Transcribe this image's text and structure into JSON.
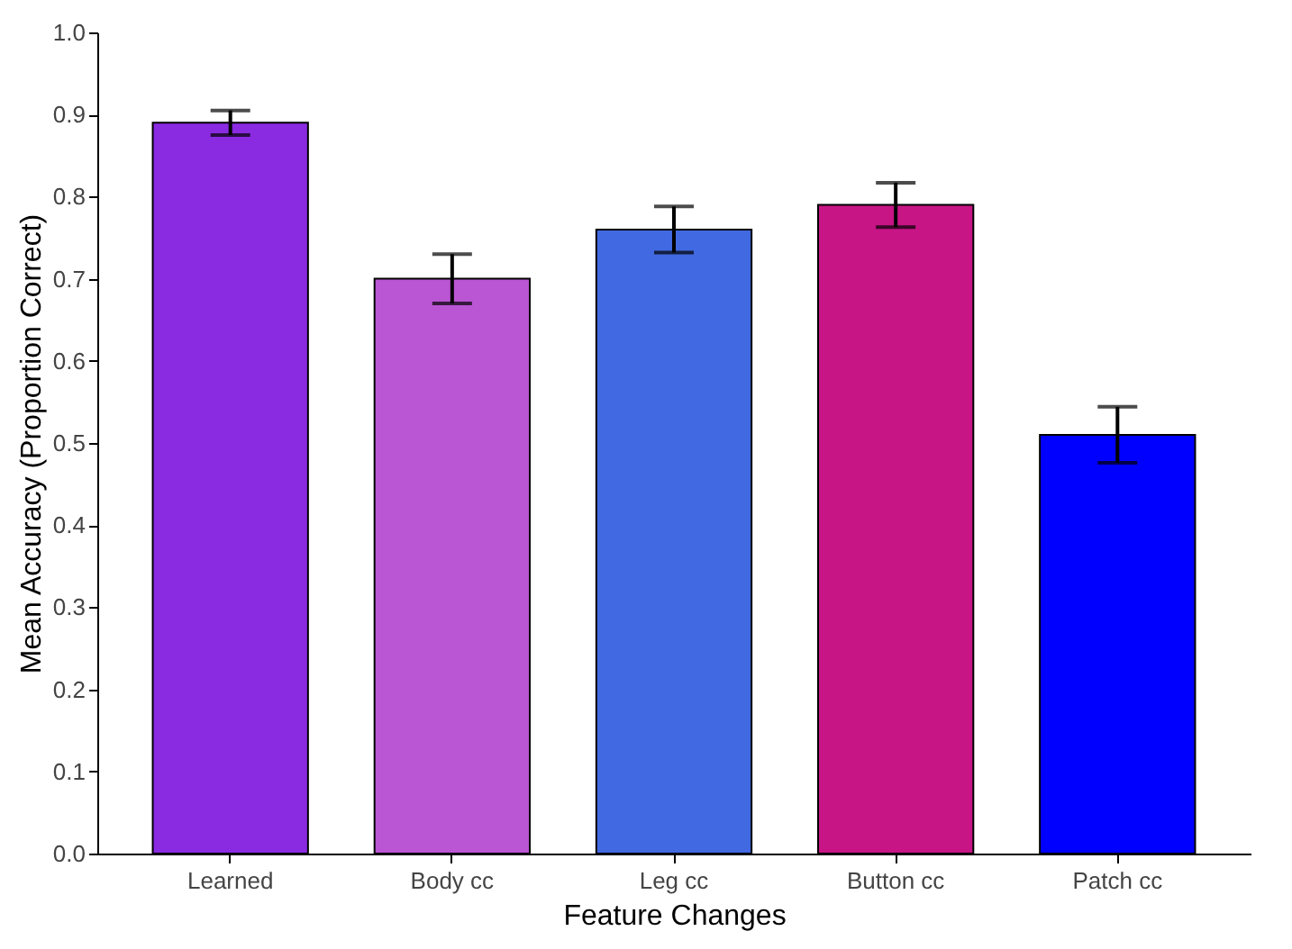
{
  "chart_data": {
    "type": "bar",
    "xlabel": "Feature Changes",
    "ylabel": "Mean Accuracy (Proportion Correct)",
    "categories": [
      "Learned",
      "Body cc",
      "Leg cc",
      "Button cc",
      "Patch cc"
    ],
    "values": [
      0.89,
      0.7,
      0.76,
      0.79,
      0.51
    ],
    "errors": [
      0.015,
      0.03,
      0.028,
      0.027,
      0.034
    ],
    "colors": [
      "#8a2be2",
      "#ba55d3",
      "#4169e1",
      "#c71585",
      "#0000ff"
    ],
    "ylim": [
      0,
      1
    ],
    "yticks": [
      {
        "value": 0,
        "label": "0.0"
      },
      0.1,
      0.2,
      0.3,
      0.4,
      0.5,
      0.6,
      0.7,
      0.8,
      0.9,
      {
        "value": 1,
        "label": "1.0"
      }
    ],
    "grid": false
  }
}
